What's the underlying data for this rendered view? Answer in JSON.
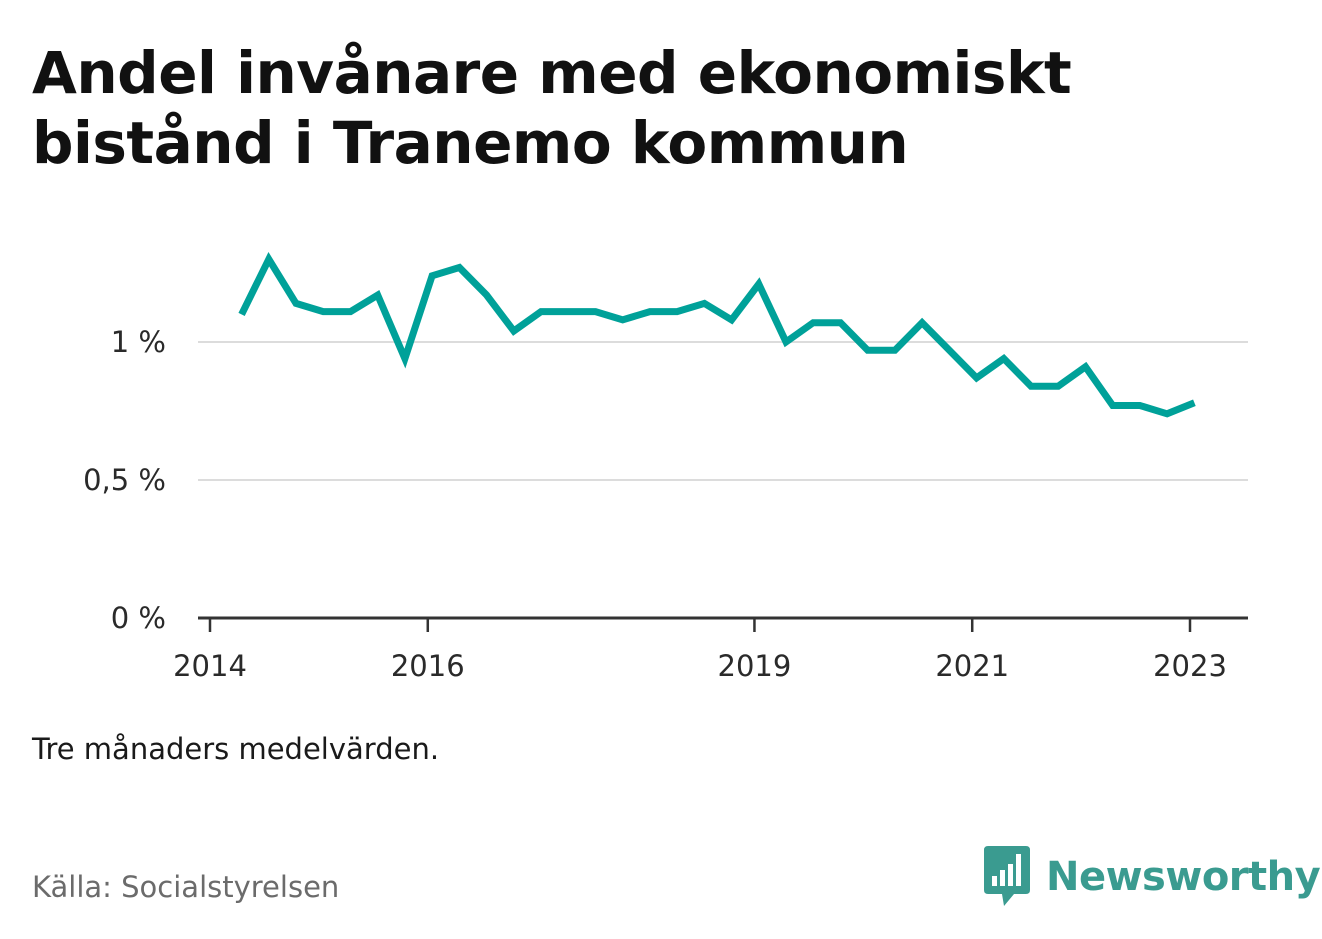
{
  "title_line1": "Andel invånare med ekonomiskt",
  "title_line2": "bistånd i Tranemo kommun",
  "note": "Tre månaders medelvärden.",
  "source": "Källa: Socialstyrelsen",
  "brand": {
    "name": "Newsworthy",
    "icon": "bar-chart-speech-bubble-icon",
    "color": "#3a9b90"
  },
  "chart_data": {
    "type": "line",
    "title": "Andel invånare med ekonomiskt bistånd i Tranemo kommun",
    "xlabel": "",
    "ylabel": "",
    "ylim": [
      0,
      1.45
    ],
    "xlim": [
      2013.9,
      2023.5
    ],
    "y_ticks": [
      {
        "value": 0,
        "label": "0 %"
      },
      {
        "value": 0.5,
        "label": "0,5 %"
      },
      {
        "value": 1,
        "label": "1 %"
      }
    ],
    "x_ticks": [
      {
        "value": 2014,
        "label": "2014"
      },
      {
        "value": 2016,
        "label": "2016"
      },
      {
        "value": 2019,
        "label": "2019"
      },
      {
        "value": 2021,
        "label": "2021"
      },
      {
        "value": 2023,
        "label": "2023"
      }
    ],
    "grid": "horizontal",
    "line_color": "#00a199",
    "series": [
      {
        "name": "",
        "x": [
          2014.29,
          2014.54,
          2014.79,
          2015.04,
          2015.29,
          2015.54,
          2015.79,
          2016.04,
          2016.29,
          2016.54,
          2016.79,
          2017.04,
          2017.29,
          2017.54,
          2017.79,
          2018.04,
          2018.29,
          2018.54,
          2018.79,
          2019.04,
          2019.29,
          2019.54,
          2019.79,
          2020.04,
          2020.29,
          2020.54,
          2020.79,
          2021.04,
          2021.29,
          2021.54,
          2021.79,
          2022.04,
          2022.29,
          2022.54,
          2022.79,
          2023.04
        ],
        "y": [
          1.1,
          1.3,
          1.14,
          1.11,
          1.11,
          1.17,
          0.94,
          1.24,
          1.27,
          1.17,
          1.04,
          1.11,
          1.11,
          1.11,
          1.08,
          1.11,
          1.11,
          1.14,
          1.08,
          1.21,
          1.0,
          1.07,
          1.07,
          0.97,
          0.97,
          1.07,
          0.97,
          0.87,
          0.94,
          0.84,
          0.84,
          0.91,
          0.77,
          0.77,
          0.74,
          0.78
        ]
      }
    ]
  }
}
